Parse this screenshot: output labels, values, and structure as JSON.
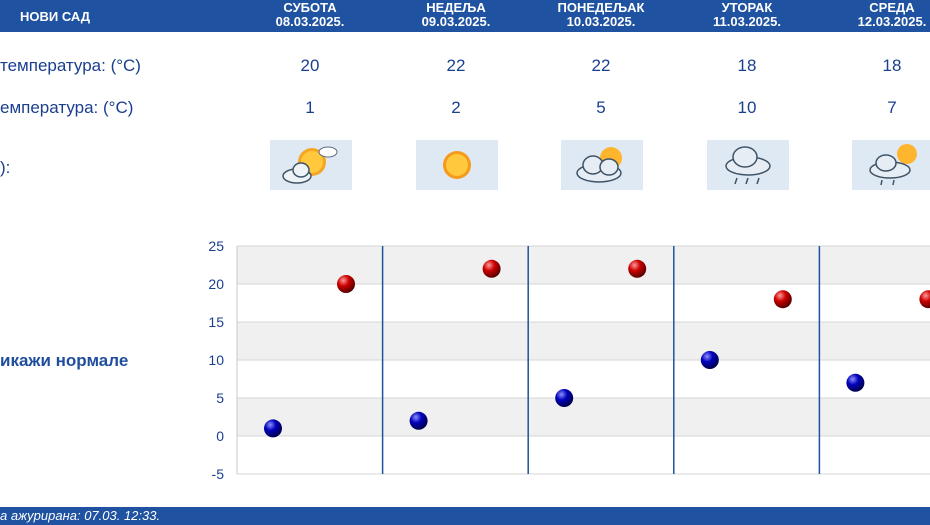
{
  "header": {
    "city": "НОВИ САД",
    "days": [
      {
        "name": "СУБОТА",
        "date": "08.03.2025."
      },
      {
        "name": "НЕДЕЉА",
        "date": "09.03.2025."
      },
      {
        "name": "ПОНЕДЕЉАК",
        "date": "10.03.2025."
      },
      {
        "name": "УТОРАК",
        "date": "11.03.2025."
      },
      {
        "name": "СРЕДА",
        "date": "12.03.2025."
      }
    ]
  },
  "rows": {
    "max_label": "температура: (°C)",
    "min_label": "емпература: (°C)",
    "icon_label": "):",
    "max_values": [
      "20",
      "22",
      "22",
      "18",
      "18"
    ],
    "min_values": [
      "1",
      "2",
      "5",
      "10",
      "7"
    ],
    "icons": [
      "partly-cloudy-sun-icon",
      "sun-icon",
      "cloud-sun-icon",
      "rain-cloud-icon",
      "rain-cloud-sun-icon"
    ]
  },
  "normals_label": "икажи нормале",
  "footer": {
    "updated": "а ажурирана:  07.03.  12:33."
  },
  "colors": {
    "header": "#1f52a0",
    "max_dot": "#cc0000",
    "min_dot": "#0000bb",
    "divider": "#1f52a0"
  },
  "chart_data": {
    "type": "scatter",
    "categories": [
      "08.03.2025.",
      "09.03.2025.",
      "10.03.2025.",
      "11.03.2025.",
      "12.03.2025."
    ],
    "series": [
      {
        "name": "max",
        "values": [
          20,
          22,
          22,
          18,
          18
        ]
      },
      {
        "name": "min",
        "values": [
          1,
          2,
          5,
          10,
          7
        ]
      }
    ],
    "yticks": [
      "25",
      "20",
      "15",
      "10",
      "5",
      "0",
      "-5"
    ],
    "ylim": [
      -5,
      25
    ],
    "grid": true
  }
}
